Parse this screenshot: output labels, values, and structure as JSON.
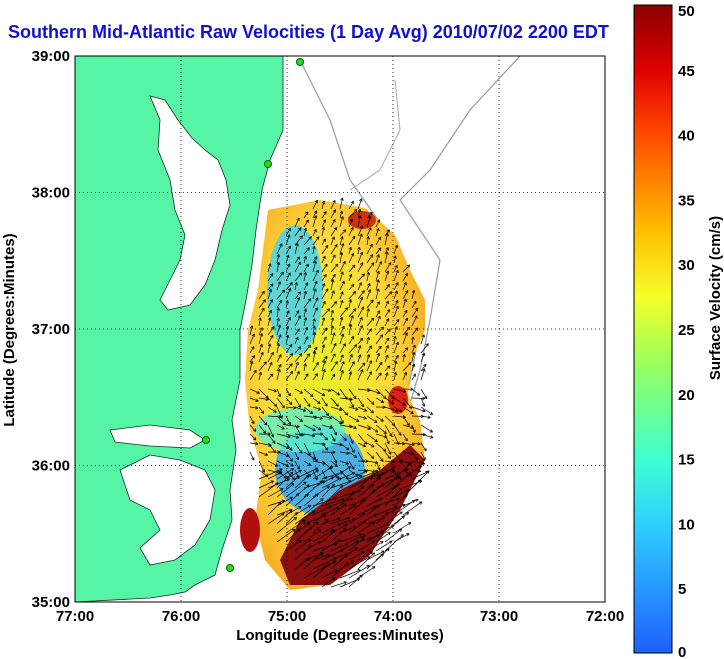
{
  "title": "Southern Mid-Atlantic Raw Velocities (1 Day Avg) 2010/07/02 2200 EDT",
  "map": {
    "xlabel": "Longitude (Degrees:Minutes)",
    "ylabel": "Latitude (Degrees:Minutes)",
    "x_ticks": [
      "77:00",
      "76:00",
      "75:00",
      "74:00",
      "73:00",
      "72:00"
    ],
    "y_ticks": [
      "39:00",
      "38:00",
      "37:00",
      "36:00",
      "35:00"
    ],
    "x_range": [
      -77,
      -72
    ],
    "y_range": [
      35,
      39
    ],
    "grid": true,
    "land_color": "#55f5a5",
    "station_color": "#22dd22"
  },
  "colorbar": {
    "label": "Surface Velocity (cm/s)",
    "ticks": [
      "0",
      "5",
      "10",
      "15",
      "20",
      "25",
      "30",
      "35",
      "40",
      "45",
      "50"
    ],
    "min": 0,
    "max": 50
  }
}
